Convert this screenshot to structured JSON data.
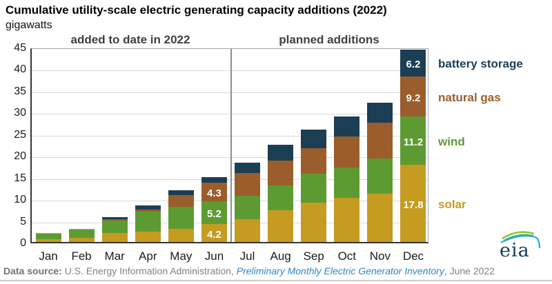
{
  "title": "Cumulative utility-scale electric generating capacity additions (2022)",
  "subtitle": "gigawatts",
  "sections": {
    "left": "added to date in 2022",
    "right": "planned additions"
  },
  "footer": {
    "prefix_bold": "Data source:",
    "agency": " U.S. Energy Information Administration, ",
    "link": "Preliminary Monthly Electric Generator Inventory",
    "suffix": ", June 2022"
  },
  "logo_text": "eia",
  "colors": {
    "solar": "#c59b20",
    "wind": "#5d9b32",
    "natural_gas": "#9a5d2b",
    "battery_storage": "#1b3e54",
    "other": "#a8aaad",
    "gridline": "#d9d9d9",
    "section_text": "#404040",
    "footer_link": "#2e86c6"
  },
  "chart_data": {
    "type": "bar",
    "stacked": true,
    "title": "Cumulative utility-scale electric generating capacity additions (2022)",
    "ylabel": "gigawatts",
    "ylim": [
      0,
      45
    ],
    "ytick_step": 5,
    "grid": true,
    "categories": [
      "Jan",
      "Feb",
      "Mar",
      "Apr",
      "May",
      "Jun",
      "Jul",
      "Aug",
      "Sep",
      "Oct",
      "Nov",
      "Dec"
    ],
    "series": [
      {
        "name": "solar",
        "color": "#c59b20",
        "in_legend": true,
        "values": [
          0.7,
          1.0,
          2.0,
          2.4,
          3.1,
          4.2,
          5.3,
          7.3,
          9.1,
          10.2,
          11.2,
          17.8
        ]
      },
      {
        "name": "wind",
        "color": "#5d9b32",
        "in_legend": true,
        "values": [
          1.3,
          1.9,
          2.9,
          4.6,
          5.0,
          5.2,
          5.4,
          5.8,
          6.6,
          7.0,
          8.0,
          11.2
        ]
      },
      {
        "name": "natural gas",
        "color": "#9a5d2b",
        "in_legend": true,
        "values": [
          0,
          0,
          0.3,
          0.4,
          2.7,
          4.3,
          5.2,
          5.7,
          6.0,
          7.2,
          8.3,
          9.2
        ]
      },
      {
        "name": "battery storage",
        "color": "#1b3e54",
        "in_legend": true,
        "values": [
          0,
          0,
          0.5,
          1.0,
          1.1,
          1.3,
          2.4,
          3.6,
          4.3,
          4.5,
          4.7,
          6.2
        ]
      },
      {
        "name": "other",
        "color": "#a8aaad",
        "in_legend": false,
        "values": [
          0.1,
          0.2,
          0,
          0,
          0,
          0,
          0,
          0,
          0,
          0,
          0,
          0
        ]
      }
    ],
    "value_labels": [
      {
        "category": "Jun",
        "series": "solar",
        "text": "4.2"
      },
      {
        "category": "Jun",
        "series": "wind",
        "text": "5.2"
      },
      {
        "category": "Jun",
        "series": "natural gas",
        "text": "4.3"
      },
      {
        "category": "Dec",
        "series": "solar",
        "text": "17.8"
      },
      {
        "category": "Dec",
        "series": "wind",
        "text": "11.2"
      },
      {
        "category": "Dec",
        "series": "natural gas",
        "text": "9.2"
      },
      {
        "category": "Dec",
        "series": "battery storage",
        "text": "6.2"
      }
    ],
    "legend": {
      "position": "right",
      "order": [
        "battery storage",
        "natural gas",
        "wind",
        "solar"
      ]
    },
    "section_split_after": "Jun"
  }
}
